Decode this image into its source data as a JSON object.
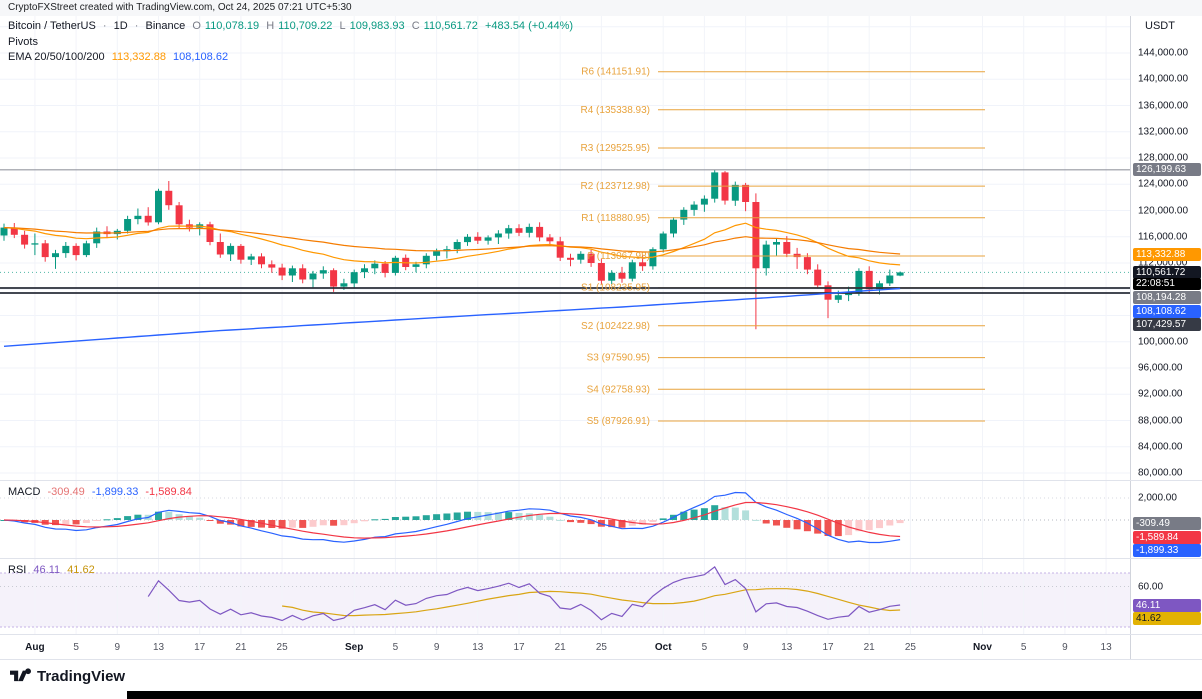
{
  "top_bar": {
    "attribution": "CryptoFXStreet created with TradingView.com, Oct 24, 2025 07:21 UTC+5:30"
  },
  "header": {
    "symbol": "Bitcoin / TetherUS",
    "sep": "·",
    "interval": "1D",
    "exchange": "Binance",
    "ohlc": {
      "o_label": "O",
      "o": "110,078.19",
      "h_label": "H",
      "h": "110,709.22",
      "l_label": "L",
      "l": "109,983.93",
      "c_label": "C",
      "c": "110,561.72",
      "change": "+483.54 (+0.44%)"
    },
    "pivots_label": "Pivots",
    "ema": {
      "label": "EMA 20/50/100/200",
      "value1": "113,332.88",
      "value2": "108,108.62"
    },
    "quote_currency": "USDT"
  },
  "price_scale": {
    "ticks": [
      {
        "label": "144,000.00",
        "value": 144000
      },
      {
        "label": "140,000.00",
        "value": 140000
      },
      {
        "label": "136,000.00",
        "value": 136000
      },
      {
        "label": "132,000.00",
        "value": 132000
      },
      {
        "label": "128,000.00",
        "value": 128000
      },
      {
        "label": "124,000.00",
        "value": 124000
      },
      {
        "label": "120,000.00",
        "value": 120000
      },
      {
        "label": "116,000.00",
        "value": 116000
      },
      {
        "label": "112,000.00",
        "value": 112000
      },
      {
        "label": "100,000.00",
        "value": 100000
      },
      {
        "label": "96,000.00",
        "value": 96000
      },
      {
        "label": "92,000.00",
        "value": 92000
      },
      {
        "label": "88,000.00",
        "value": 88000
      },
      {
        "label": "84,000.00",
        "value": 84000
      },
      {
        "label": "80,000.00",
        "value": 80000
      }
    ],
    "badges": [
      {
        "name": "hline-high-label",
        "label": "126,199.63",
        "value": 126199.63,
        "bg": "#787b86",
        "fg": "#fff"
      },
      {
        "name": "ema-orange-label",
        "label": "113,332.88",
        "value": 113332.88,
        "bg": "#ff9800",
        "fg": "#fff"
      },
      {
        "name": "last-price-label",
        "label": "110,561.72",
        "value": 110561.72,
        "bg": "#131722",
        "fg": "#fff",
        "countdown": "22:08:51"
      },
      {
        "name": "hline-label",
        "label": "108,194.28",
        "value": 108194.28,
        "bg": "#787b86",
        "fg": "#fff"
      },
      {
        "name": "ema-200-label",
        "label": "108,108.62",
        "value": 108108.62,
        "bg": "#2962ff",
        "fg": "#fff"
      },
      {
        "name": "hline-low-label",
        "label": "107,429.57",
        "value": 107429.57,
        "bg": "#363a45",
        "fg": "#fff"
      }
    ]
  },
  "pivots": [
    {
      "label": "R6 (141151.91)",
      "value": 141151.91
    },
    {
      "label": "R4 (135338.93)",
      "value": 135338.93
    },
    {
      "label": "R3 (129525.95)",
      "value": 129525.95
    },
    {
      "label": "R2 (123712.98)",
      "value": 123712.98
    },
    {
      "label": "R1 (118880.95)",
      "value": 118880.95
    },
    {
      "label": "P (113067.98)",
      "value": 113067.98
    },
    {
      "label": "S1 (108235.95)",
      "value": 108235.95
    },
    {
      "label": "S2 (102422.98)",
      "value": 102422.98
    },
    {
      "label": "S3 (97590.95)",
      "value": 97590.95
    },
    {
      "label": "S4 (92758.93)",
      "value": 92758.93
    },
    {
      "label": "S5 (87926.91)",
      "value": 87926.91
    }
  ],
  "drawn_lines": [
    {
      "value": 126199.63,
      "color": "#9598a1",
      "width": 1.2
    },
    {
      "value": 108194.28,
      "color": "#2a2e39",
      "width": 1.8
    },
    {
      "value": 107429.57,
      "color": "#2a2e39",
      "width": 1.8
    }
  ],
  "macd_panel": {
    "label": "MACD",
    "hist_value": "-309.49",
    "macd_value": "-1,899.33",
    "signal_value": "-1,589.84",
    "scale_tick": {
      "label": "2,000.00",
      "value": 2000
    },
    "badges": [
      {
        "name": "macd-hist-label",
        "label": "-309.49",
        "value": -309.49,
        "bg": "#787b86",
        "fg": "#fff"
      },
      {
        "name": "macd-signal-label",
        "label": "-1,589.84",
        "value": -1589.84,
        "bg": "#f23645",
        "fg": "#fff"
      },
      {
        "name": "macd-line-label",
        "label": "-1,899.33",
        "value": -1899.33,
        "bg": "#2962ff",
        "fg": "#fff"
      }
    ]
  },
  "rsi_panel": {
    "label": "RSI",
    "value1": "46.11",
    "value2": "41.62",
    "scale_tick": {
      "label": "60.00",
      "value": 60
    },
    "badges": [
      {
        "name": "rsi-value-label",
        "label": "46.11",
        "value": 46.11,
        "bg": "#7e57c2",
        "fg": "#fff"
      },
      {
        "name": "rsi-ma-label",
        "label": "41.62",
        "value": 41.62,
        "bg": "#e2b203",
        "fg": "#131722"
      }
    ]
  },
  "time_axis": {
    "ticks": [
      {
        "label": "Aug",
        "index": 3,
        "major": true
      },
      {
        "label": "5",
        "index": 7
      },
      {
        "label": "9",
        "index": 11
      },
      {
        "label": "13",
        "index": 15
      },
      {
        "label": "17",
        "index": 19
      },
      {
        "label": "21",
        "index": 23
      },
      {
        "label": "25",
        "index": 27
      },
      {
        "label": "Sep",
        "index": 34,
        "major": true
      },
      {
        "label": "5",
        "index": 38
      },
      {
        "label": "9",
        "index": 42
      },
      {
        "label": "13",
        "index": 46
      },
      {
        "label": "17",
        "index": 50
      },
      {
        "label": "21",
        "index": 54
      },
      {
        "label": "25",
        "index": 58
      },
      {
        "label": "Oct",
        "index": 64,
        "major": true
      },
      {
        "label": "5",
        "index": 68
      },
      {
        "label": "9",
        "index": 72
      },
      {
        "label": "13",
        "index": 76
      },
      {
        "label": "17",
        "index": 80
      },
      {
        "label": "21",
        "index": 84
      },
      {
        "label": "25",
        "index": 88
      },
      {
        "label": "Nov",
        "index": 95,
        "major": true
      },
      {
        "label": "5",
        "index": 99
      },
      {
        "label": "9",
        "index": 103
      },
      {
        "label": "13",
        "index": 107
      }
    ]
  },
  "footer": {
    "brand": "TradingView"
  },
  "chart_data": {
    "type": "candlestick",
    "title": "Bitcoin / TetherUS 1D Binance",
    "price_axis": {
      "min": 80000,
      "max": 144000,
      "step": 4000
    },
    "colors": {
      "up": "#089981",
      "down": "#f23645",
      "ema_fast": "#ff9800",
      "ema_slow": "#f57c00",
      "ema200": "#2962ff",
      "macd": "#2962ff",
      "signal": "#f23645",
      "hist_up": "#26a69a",
      "hist_up_weak": "#b2dfdb",
      "hist_dn": "#ef5350",
      "hist_dn_weak": "#fccbcd",
      "rsi": "#7e57c2",
      "rsi_ma": "#d9a514",
      "pivot": "#e8a33d"
    },
    "candles": [
      [
        "Jul 29",
        116200,
        118000,
        115400,
        117400
      ],
      [
        "Jul 30",
        117400,
        118100,
        115800,
        116300
      ],
      [
        "Jul 31",
        116300,
        116900,
        114200,
        114800
      ],
      [
        "Aug 1",
        114800,
        116500,
        113200,
        115000
      ],
      [
        "Aug 2",
        115000,
        115500,
        112200,
        112900
      ],
      [
        "Aug 3",
        112900,
        114000,
        111100,
        113500
      ],
      [
        "Aug 4",
        113500,
        115200,
        112800,
        114600
      ],
      [
        "Aug 5",
        114600,
        115000,
        112400,
        113200
      ],
      [
        "Aug 6",
        113200,
        115400,
        112900,
        115000
      ],
      [
        "Aug 7",
        115000,
        117400,
        114300,
        116800
      ],
      [
        "Aug 8",
        116800,
        117600,
        115800,
        116400
      ],
      [
        "Aug 9",
        116400,
        117200,
        115600,
        116900
      ],
      [
        "Aug 10",
        116900,
        119200,
        116500,
        118700
      ],
      [
        "Aug 11",
        118700,
        120300,
        117900,
        119200
      ],
      [
        "Aug 12",
        119200,
        120500,
        117700,
        118200
      ],
      [
        "Aug 13",
        118200,
        123300,
        117900,
        123000
      ],
      [
        "Aug 14",
        123000,
        124500,
        120100,
        120800
      ],
      [
        "Aug 15",
        120800,
        121300,
        117300,
        117900
      ],
      [
        "Aug 16",
        117900,
        118600,
        116800,
        117400
      ],
      [
        "Aug 17",
        117400,
        118200,
        116200,
        117900
      ],
      [
        "Aug 18",
        117900,
        118300,
        114700,
        115200
      ],
      [
        "Aug 19",
        115200,
        116500,
        112800,
        113300
      ],
      [
        "Aug 20",
        113300,
        115000,
        112300,
        114600
      ],
      [
        "Aug 21",
        114600,
        114900,
        111900,
        112500
      ],
      [
        "Aug 22",
        112500,
        113400,
        111700,
        113000
      ],
      [
        "Aug 23",
        113000,
        113500,
        111200,
        111800
      ],
      [
        "Aug 24",
        111800,
        112400,
        110500,
        111300
      ],
      [
        "Aug 25",
        111300,
        111900,
        109400,
        110100
      ],
      [
        "Aug 26",
        110100,
        111600,
        109100,
        111200
      ],
      [
        "Aug 27",
        111200,
        111800,
        108900,
        109500
      ],
      [
        "Aug 28",
        109500,
        110800,
        108200,
        110400
      ],
      [
        "Aug 29",
        110400,
        111500,
        109600,
        110900
      ],
      [
        "Aug 30",
        110900,
        111200,
        107600,
        108400
      ],
      [
        "Aug 31",
        108400,
        109600,
        107900,
        108900
      ],
      [
        "Sep 1",
        108900,
        111000,
        108100,
        110600
      ],
      [
        "Sep 2",
        110600,
        111800,
        109700,
        111200
      ],
      [
        "Sep 3",
        111200,
        112400,
        110300,
        111900
      ],
      [
        "Sep 4",
        111900,
        112300,
        109800,
        110500
      ],
      [
        "Sep 5",
        110500,
        113100,
        110100,
        112800
      ],
      [
        "Sep 6",
        112800,
        113300,
        110900,
        111400
      ],
      [
        "Sep 7",
        111400,
        112200,
        110600,
        111800
      ],
      [
        "Sep 8",
        111800,
        113500,
        111200,
        113100
      ],
      [
        "Sep 9",
        113100,
        114200,
        112400,
        113800
      ],
      [
        "Sep 10",
        113800,
        114600,
        112700,
        114100
      ],
      [
        "Sep 11",
        114100,
        115600,
        113500,
        115200
      ],
      [
        "Sep 12",
        115200,
        116400,
        114600,
        116000
      ],
      [
        "Sep 13",
        116000,
        116700,
        114900,
        115400
      ],
      [
        "Sep 14",
        115400,
        116200,
        114800,
        115900
      ],
      [
        "Sep 15",
        115900,
        117000,
        114900,
        116500
      ],
      [
        "Sep 16",
        116500,
        117800,
        115700,
        117300
      ],
      [
        "Sep 17",
        117300,
        117900,
        116100,
        116600
      ],
      [
        "Sep 18",
        116600,
        118000,
        115900,
        117500
      ],
      [
        "Sep 19",
        117500,
        118200,
        115300,
        115900
      ],
      [
        "Sep 20",
        115900,
        116400,
        114600,
        115300
      ],
      [
        "Sep 21",
        115300,
        116000,
        112300,
        112800
      ],
      [
        "Sep 22",
        112800,
        113400,
        111500,
        112500
      ],
      [
        "Sep 23",
        112500,
        113800,
        111900,
        113400
      ],
      [
        "Sep 24",
        113400,
        114000,
        111400,
        112000
      ],
      [
        "Sep 25",
        112000,
        112600,
        108700,
        109300
      ],
      [
        "Sep 26",
        109300,
        110900,
        108800,
        110500
      ],
      [
        "Sep 27",
        110500,
        111400,
        109000,
        109600
      ],
      [
        "Sep 28",
        109600,
        112500,
        109200,
        112100
      ],
      [
        "Sep 29",
        112100,
        113200,
        110800,
        111500
      ],
      [
        "Sep 30",
        111500,
        114400,
        111000,
        114100
      ],
      [
        "Oct 1",
        114100,
        116800,
        113600,
        116500
      ],
      [
        "Oct 2",
        116500,
        119000,
        115900,
        118600
      ],
      [
        "Oct 3",
        118600,
        120500,
        117800,
        120100
      ],
      [
        "Oct 4",
        120100,
        121400,
        119200,
        120900
      ],
      [
        "Oct 5",
        120900,
        122300,
        119800,
        121800
      ],
      [
        "Oct 6",
        121800,
        126200,
        121200,
        125800
      ],
      [
        "Oct 7",
        125800,
        126000,
        120900,
        121500
      ],
      [
        "Oct 8",
        121500,
        124400,
        120700,
        123900
      ],
      [
        "Oct 9",
        123900,
        124200,
        119900,
        121300
      ],
      [
        "Oct 10",
        121300,
        122600,
        101900,
        111200
      ],
      [
        "Oct 11",
        111200,
        115400,
        110100,
        114800
      ],
      [
        "Oct 12",
        114800,
        115800,
        113100,
        115200
      ],
      [
        "Oct 13",
        115200,
        116100,
        112900,
        113400
      ],
      [
        "Oct 14",
        113400,
        114300,
        111100,
        112900
      ],
      [
        "Oct 15",
        112900,
        113500,
        110300,
        111000
      ],
      [
        "Oct 16",
        111000,
        111800,
        108100,
        108600
      ],
      [
        "Oct 17",
        108600,
        109200,
        103600,
        106400
      ],
      [
        "Oct 18",
        106400,
        107800,
        105900,
        107100
      ],
      [
        "Oct 19",
        107100,
        108400,
        106200,
        107500
      ],
      [
        "Oct 20",
        107500,
        111200,
        107000,
        110800
      ],
      [
        "Oct 21",
        110800,
        111500,
        107300,
        108000
      ],
      [
        "Oct 22",
        108000,
        109300,
        107200,
        108900
      ],
      [
        "Oct 23",
        108900,
        111000,
        108500,
        110100
      ],
      [
        "Oct 24",
        110078.19,
        110709.22,
        109983.93,
        110561.72
      ]
    ],
    "ema200_anchors": [
      [
        0,
        99300
      ],
      [
        20,
        101600
      ],
      [
        40,
        103500
      ],
      [
        60,
        105300
      ],
      [
        75,
        106800
      ],
      [
        83,
        107700
      ],
      [
        87,
        108108.62
      ]
    ],
    "indicators": {
      "macd": {
        "fast": 12,
        "slow": 26,
        "signal": 9,
        "displayed": {
          "hist": -309.49,
          "macd": -1899.33,
          "signal": -1589.84
        }
      },
      "rsi": {
        "length": 14,
        "ma_length": 14,
        "displayed": {
          "rsi": 46.11,
          "ma": 41.62
        },
        "band": [
          30,
          70
        ]
      }
    }
  }
}
